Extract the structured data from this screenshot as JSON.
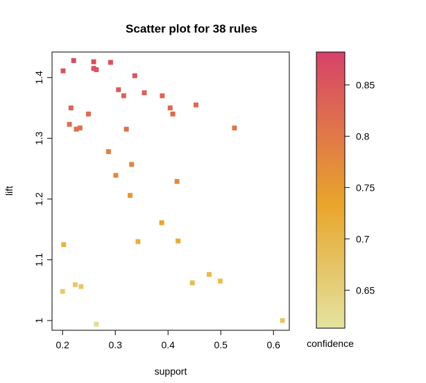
{
  "chart_data": {
    "type": "scatter",
    "title": "Scatter plot for 38 rules",
    "xlabel": "support",
    "ylabel": "lift",
    "xlim": [
      0.18,
      0.63
    ],
    "ylim": [
      0.984,
      1.442
    ],
    "xticks": [
      {
        "value": 0.2,
        "label": "0.2"
      },
      {
        "value": 0.3,
        "label": "0.3"
      },
      {
        "value": 0.4,
        "label": "0.4"
      },
      {
        "value": 0.5,
        "label": "0.5"
      },
      {
        "value": 0.6,
        "label": "0.6"
      }
    ],
    "yticks": [
      {
        "value": 1.0,
        "label": "1"
      },
      {
        "value": 1.1,
        "label": "1.1"
      },
      {
        "value": 1.2,
        "label": "1.2"
      },
      {
        "value": 1.3,
        "label": "1.3"
      },
      {
        "value": 1.4,
        "label": "1.4"
      }
    ],
    "colorbar": {
      "label": "confidence",
      "range": [
        0.613,
        0.882
      ],
      "ticks": [
        {
          "value": 0.65,
          "label": "0.65"
        },
        {
          "value": 0.7,
          "label": "0.7"
        },
        {
          "value": 0.75,
          "label": "0.75"
        },
        {
          "value": 0.8,
          "label": "0.8"
        },
        {
          "value": 0.85,
          "label": "0.85"
        }
      ],
      "color_low": "#e3e3a0",
      "color_mid": "#e8a52b",
      "color_high": "#d6426a"
    },
    "points": [
      {
        "support": 0.221,
        "lift": 1.428,
        "confidence": 0.87
      },
      {
        "support": 0.259,
        "lift": 1.426,
        "confidence": 0.865
      },
      {
        "support": 0.291,
        "lift": 1.425,
        "confidence": 0.86
      },
      {
        "support": 0.201,
        "lift": 1.411,
        "confidence": 0.86
      },
      {
        "support": 0.259,
        "lift": 1.415,
        "confidence": 0.86
      },
      {
        "support": 0.264,
        "lift": 1.413,
        "confidence": 0.855
      },
      {
        "support": 0.337,
        "lift": 1.403,
        "confidence": 0.85
      },
      {
        "support": 0.306,
        "lift": 1.38,
        "confidence": 0.84
      },
      {
        "support": 0.355,
        "lift": 1.375,
        "confidence": 0.835
      },
      {
        "support": 0.316,
        "lift": 1.37,
        "confidence": 0.835
      },
      {
        "support": 0.389,
        "lift": 1.37,
        "confidence": 0.83
      },
      {
        "support": 0.453,
        "lift": 1.355,
        "confidence": 0.825
      },
      {
        "support": 0.216,
        "lift": 1.35,
        "confidence": 0.83
      },
      {
        "support": 0.404,
        "lift": 1.35,
        "confidence": 0.825
      },
      {
        "support": 0.249,
        "lift": 1.34,
        "confidence": 0.82
      },
      {
        "support": 0.409,
        "lift": 1.34,
        "confidence": 0.825
      },
      {
        "support": 0.213,
        "lift": 1.323,
        "confidence": 0.815
      },
      {
        "support": 0.233,
        "lift": 1.317,
        "confidence": 0.81
      },
      {
        "support": 0.226,
        "lift": 1.315,
        "confidence": 0.81
      },
      {
        "support": 0.321,
        "lift": 1.315,
        "confidence": 0.81
      },
      {
        "support": 0.526,
        "lift": 1.317,
        "confidence": 0.805
      },
      {
        "support": 0.287,
        "lift": 1.278,
        "confidence": 0.79
      },
      {
        "support": 0.331,
        "lift": 1.257,
        "confidence": 0.785
      },
      {
        "support": 0.301,
        "lift": 1.239,
        "confidence": 0.775
      },
      {
        "support": 0.417,
        "lift": 1.229,
        "confidence": 0.775
      },
      {
        "support": 0.328,
        "lift": 1.206,
        "confidence": 0.755
      },
      {
        "support": 0.388,
        "lift": 1.161,
        "confidence": 0.735
      },
      {
        "support": 0.343,
        "lift": 1.13,
        "confidence": 0.715
      },
      {
        "support": 0.419,
        "lift": 1.131,
        "confidence": 0.72
      },
      {
        "support": 0.202,
        "lift": 1.125,
        "confidence": 0.705
      },
      {
        "support": 0.478,
        "lift": 1.076,
        "confidence": 0.69
      },
      {
        "support": 0.499,
        "lift": 1.065,
        "confidence": 0.69
      },
      {
        "support": 0.446,
        "lift": 1.062,
        "confidence": 0.69
      },
      {
        "support": 0.224,
        "lift": 1.059,
        "confidence": 0.665
      },
      {
        "support": 0.235,
        "lift": 1.056,
        "confidence": 0.665
      },
      {
        "support": 0.2,
        "lift": 1.048,
        "confidence": 0.66
      },
      {
        "support": 0.264,
        "lift": 0.994,
        "confidence": 0.625
      },
      {
        "support": 0.617,
        "lift": 1.0,
        "confidence": 0.67
      }
    ]
  }
}
